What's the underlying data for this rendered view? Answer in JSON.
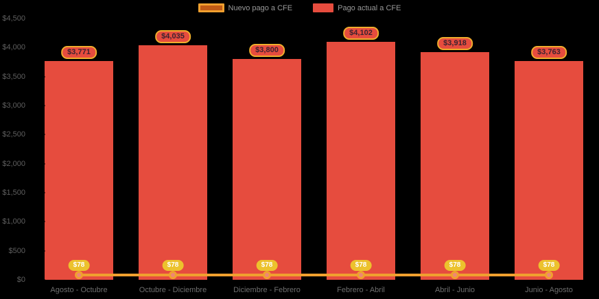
{
  "chart_data": {
    "type": "combo-bar-line",
    "background": "#000000",
    "legend_position": "top",
    "grid": false,
    "categories": [
      "Agosto - Octubre",
      "Octubre - Diciembre",
      "Diciembre - Febrero",
      "Febrero - Abril",
      "Abril - Junio",
      "Junio - Agosto"
    ],
    "series": [
      {
        "name": "Nuevo pago a CFE",
        "type": "line",
        "values": [
          78,
          78,
          78,
          78,
          78,
          78
        ],
        "labels": [
          "$78",
          "$78",
          "$78",
          "$78",
          "$78",
          "$78"
        ],
        "color": "#f0a02f",
        "marker_fill": "#ef8576",
        "marker_stroke": "#f0a02f",
        "label_bg": "#ecc22d",
        "label_text_color": "#ffffff"
      },
      {
        "name": "Pago actual a CFE",
        "type": "bar",
        "values": [
          3771,
          4035,
          3800,
          4102,
          3918,
          3763
        ],
        "labels": [
          "$3,771",
          "$4,035",
          "$3,800",
          "$4,102",
          "$3,918",
          "$3,763"
        ],
        "color": "#e64c3e",
        "label_bg": "#e64c3e",
        "label_border": "#f0ad2c",
        "label_text_color": "#3a2230"
      }
    ],
    "ylim": [
      0,
      4500
    ],
    "yticks": {
      "values": [
        0,
        500,
        1000,
        1500,
        2000,
        2500,
        3000,
        3500,
        4000,
        4500
      ],
      "labels": [
        "$0",
        "$500",
        "$1,000",
        "$1,500",
        "$2,000",
        "$2,500",
        "$3,000",
        "$3,500",
        "$4,000",
        "$4,500"
      ]
    }
  }
}
